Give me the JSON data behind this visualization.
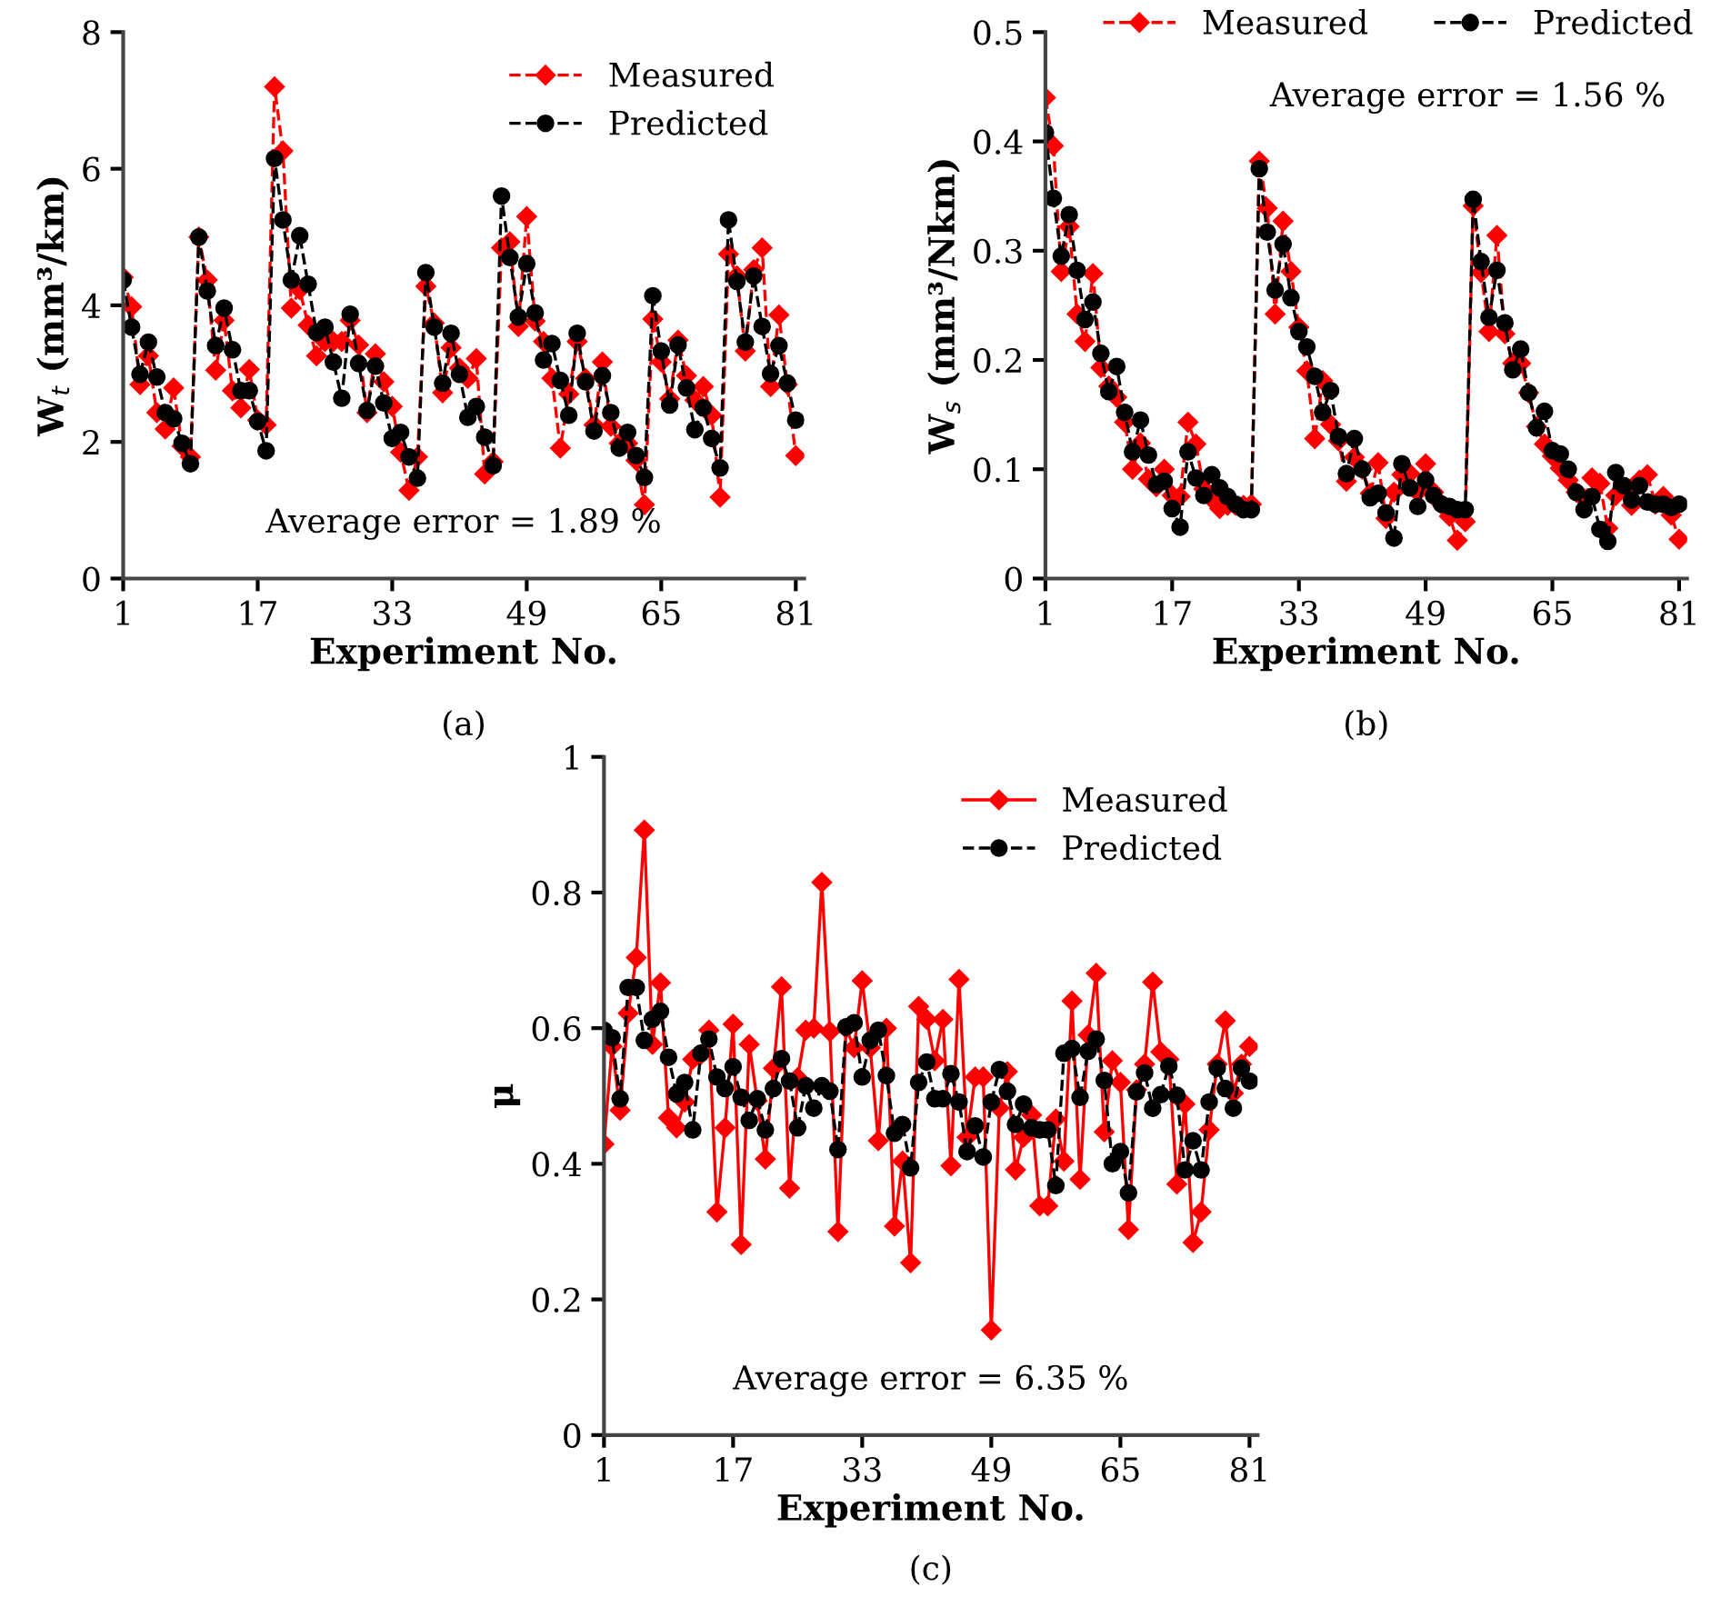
{
  "chart_data": [
    {
      "type": "line",
      "xlabel": "Experiment No.",
      "ylabel": "W$_{t}$ (mm³/km)",
      "x": [
        1,
        2,
        3,
        4,
        5,
        6,
        7,
        8,
        9,
        10,
        11,
        12,
        13,
        14,
        15,
        16,
        17,
        18,
        19,
        20,
        21,
        22,
        23,
        24,
        25,
        26,
        27,
        28,
        29,
        30,
        31,
        32,
        33,
        34,
        35,
        36,
        37,
        38,
        39,
        40,
        41,
        42,
        43,
        44,
        45,
        46,
        47,
        48,
        49,
        50,
        51,
        52,
        53,
        54,
        55,
        56,
        57,
        58,
        59,
        60,
        61,
        62,
        63,
        64,
        65,
        66,
        67,
        68,
        69,
        70,
        71,
        72,
        73,
        74,
        75,
        76,
        77,
        78,
        79,
        80,
        81
      ],
      "xlim": [
        1,
        82
      ],
      "xticks": [
        1,
        17,
        33,
        49,
        65,
        81
      ],
      "ylim": [
        0,
        8
      ],
      "yticks": [
        0,
        2,
        4,
        6,
        8
      ],
      "grid": false,
      "legend": "top right",
      "series": [
        {
          "name": "Measured",
          "color": "#ff0000",
          "marker": "diamond",
          "line_style": "dashed",
          "values": [
            4.41,
            3.98,
            2.84,
            3.26,
            2.43,
            2.19,
            2.79,
            1.94,
            1.78,
            5.0,
            4.37,
            3.05,
            3.78,
            2.75,
            2.5,
            3.06,
            2.32,
            2.25,
            7.2,
            6.26,
            3.96,
            4.23,
            3.71,
            3.26,
            3.47,
            3.47,
            3.47,
            3.78,
            3.42,
            2.43,
            3.29,
            2.88,
            2.52,
            1.85,
            1.29,
            1.78,
            4.28,
            3.74,
            2.72,
            3.38,
            3.08,
            2.93,
            3.22,
            1.53,
            1.71,
            4.84,
            4.93,
            3.69,
            5.3,
            3.77,
            3.47,
            2.93,
            1.91,
            2.7,
            3.47,
            2.93,
            2.25,
            3.17,
            2.23,
            1.98,
            1.98,
            1.73,
            1.08,
            3.8,
            3.17,
            2.63,
            3.49,
            2.97,
            2.61,
            2.81,
            2.39,
            1.19,
            4.75,
            4.43,
            3.33,
            4.52,
            4.84,
            2.81,
            3.86,
            2.84,
            1.8
          ]
        },
        {
          "name": "Predicted",
          "color": "#000000",
          "marker": "circle",
          "line_style": "dashed",
          "values": [
            4.37,
            3.68,
            2.99,
            3.46,
            2.95,
            2.43,
            2.34,
            1.98,
            1.68,
            5.0,
            4.21,
            3.41,
            3.96,
            3.35,
            2.75,
            2.75,
            2.3,
            1.87,
            6.15,
            5.25,
            4.37,
            5.02,
            4.31,
            3.6,
            3.68,
            3.17,
            2.64,
            3.87,
            3.15,
            2.46,
            3.11,
            2.57,
            2.05,
            2.14,
            1.78,
            1.47,
            4.48,
            3.68,
            2.86,
            3.59,
            2.99,
            2.36,
            2.52,
            2.07,
            1.65,
            5.6,
            4.7,
            3.83,
            4.61,
            3.89,
            3.2,
            3.44,
            2.9,
            2.39,
            3.59,
            2.88,
            2.16,
            2.97,
            2.43,
            1.91,
            2.14,
            1.8,
            1.48,
            4.14,
            3.33,
            2.54,
            3.42,
            2.79,
            2.18,
            2.5,
            2.05,
            1.62,
            5.25,
            4.35,
            3.46,
            4.43,
            3.69,
            3.0,
            3.41,
            2.86,
            2.32
          ]
        }
      ],
      "annotations": [
        "Average error = 1.89 %",
        "(a)"
      ]
    },
    {
      "type": "line",
      "xlabel": "Experiment No.",
      "ylabel": "W$_{s}$ (mm³/Nkm)",
      "x": [
        1,
        2,
        3,
        4,
        5,
        6,
        7,
        8,
        9,
        10,
        11,
        12,
        13,
        14,
        15,
        16,
        17,
        18,
        19,
        20,
        21,
        22,
        23,
        24,
        25,
        26,
        27,
        28,
        29,
        30,
        31,
        32,
        33,
        34,
        35,
        36,
        37,
        38,
        39,
        40,
        41,
        42,
        43,
        44,
        45,
        46,
        47,
        48,
        49,
        50,
        51,
        52,
        53,
        54,
        55,
        56,
        57,
        58,
        59,
        60,
        61,
        62,
        63,
        64,
        65,
        66,
        67,
        68,
        69,
        70,
        71,
        72,
        73,
        74,
        75,
        76,
        77,
        78,
        79,
        80,
        81
      ],
      "xlim": [
        1,
        82
      ],
      "xticks": [
        1,
        17,
        33,
        49,
        65,
        81
      ],
      "ylim": [
        0,
        0.5
      ],
      "yticks": [
        0,
        0.1,
        0.2,
        0.3,
        0.4,
        0.5
      ],
      "grid": false,
      "legend": "top",
      "series": [
        {
          "name": "Measured",
          "color": "#ff0000",
          "marker": "diamond",
          "line_style": "dashed",
          "values": [
            0.44,
            0.396,
            0.281,
            0.322,
            0.242,
            0.217,
            0.279,
            0.193,
            0.176,
            0.166,
            0.143,
            0.1,
            0.124,
            0.091,
            0.084,
            0.1,
            0.076,
            0.075,
            0.143,
            0.123,
            0.082,
            0.073,
            0.064,
            0.067,
            0.067,
            0.067,
            0.068,
            0.382,
            0.339,
            0.242,
            0.327,
            0.281,
            0.23,
            0.19,
            0.128,
            0.181,
            0.141,
            0.126,
            0.089,
            0.111,
            0.1,
            0.078,
            0.106,
            0.055,
            0.079,
            0.095,
            0.096,
            0.079,
            0.105,
            0.079,
            0.068,
            0.057,
            0.035,
            0.052,
            0.341,
            0.28,
            0.226,
            0.314,
            0.224,
            0.197,
            0.197,
            0.17,
            0.139,
            0.123,
            0.112,
            0.101,
            0.09,
            0.079,
            0.073,
            0.092,
            0.087,
            0.046,
            0.076,
            0.082,
            0.067,
            0.09,
            0.095,
            0.068,
            0.075,
            0.058,
            0.036
          ]
        },
        {
          "name": "Predicted",
          "color": "#000000",
          "marker": "circle",
          "line_style": "dashed",
          "values": [
            0.408,
            0.348,
            0.295,
            0.333,
            0.282,
            0.237,
            0.253,
            0.206,
            0.171,
            0.194,
            0.152,
            0.116,
            0.145,
            0.113,
            0.086,
            0.089,
            0.064,
            0.047,
            0.116,
            0.092,
            0.076,
            0.095,
            0.083,
            0.075,
            0.068,
            0.063,
            0.063,
            0.375,
            0.317,
            0.264,
            0.306,
            0.257,
            0.226,
            0.212,
            0.185,
            0.152,
            0.172,
            0.13,
            0.096,
            0.128,
            0.1,
            0.074,
            0.078,
            0.06,
            0.037,
            0.105,
            0.083,
            0.066,
            0.09,
            0.076,
            0.068,
            0.066,
            0.063,
            0.063,
            0.347,
            0.29,
            0.239,
            0.282,
            0.234,
            0.191,
            0.21,
            0.17,
            0.138,
            0.153,
            0.117,
            0.114,
            0.1,
            0.079,
            0.063,
            0.075,
            0.045,
            0.034,
            0.097,
            0.085,
            0.072,
            0.085,
            0.07,
            0.068,
            0.068,
            0.065,
            0.068
          ]
        }
      ],
      "annotations": [
        "Average error = 1.56 %",
        "(b)"
      ]
    },
    {
      "type": "line",
      "xlabel": "Experiment No.",
      "ylabel": "μ",
      "x": [
        1,
        2,
        3,
        4,
        5,
        6,
        7,
        8,
        9,
        10,
        11,
        12,
        13,
        14,
        15,
        16,
        17,
        18,
        19,
        20,
        21,
        22,
        23,
        24,
        25,
        26,
        27,
        28,
        29,
        30,
        31,
        32,
        33,
        34,
        35,
        36,
        37,
        38,
        39,
        40,
        41,
        42,
        43,
        44,
        45,
        46,
        47,
        48,
        49,
        50,
        51,
        52,
        53,
        54,
        55,
        56,
        57,
        58,
        59,
        60,
        61,
        62,
        63,
        64,
        65,
        66,
        67,
        68,
        69,
        70,
        71,
        72,
        73,
        74,
        75,
        76,
        77,
        78,
        79,
        80,
        81
      ],
      "xlim": [
        1,
        82
      ],
      "xticks": [
        1,
        17,
        33,
        49,
        65,
        81
      ],
      "ylim": [
        0,
        1
      ],
      "yticks": [
        0,
        0.2,
        0.4,
        0.6,
        0.8,
        1
      ],
      "grid": false,
      "legend": "top right",
      "series": [
        {
          "name": "Measured",
          "color": "#ff0000",
          "marker": "diamond",
          "line_style": "solid",
          "values": [
            0.429,
            0.573,
            0.479,
            0.622,
            0.704,
            0.892,
            0.576,
            0.667,
            0.468,
            0.453,
            0.491,
            0.554,
            0.561,
            0.597,
            0.329,
            0.453,
            0.606,
            0.281,
            0.576,
            0.493,
            0.407,
            0.541,
            0.661,
            0.364,
            0.527,
            0.597,
            0.6,
            0.815,
            0.595,
            0.3,
            0.6,
            0.571,
            0.67,
            0.571,
            0.434,
            0.6,
            0.308,
            0.404,
            0.254,
            0.632,
            0.613,
            0.552,
            0.613,
            0.397,
            0.672,
            0.439,
            0.528,
            0.528,
            0.155,
            0.482,
            0.536,
            0.391,
            0.439,
            0.472,
            0.338,
            0.338,
            0.466,
            0.404,
            0.64,
            0.377,
            0.59,
            0.681,
            0.447,
            0.552,
            0.52,
            0.303,
            0.509,
            0.547,
            0.668,
            0.565,
            0.554,
            0.37,
            0.488,
            0.284,
            0.329,
            0.45,
            0.547,
            0.611,
            0.504,
            0.547,
            0.573
          ]
        },
        {
          "name": "Predicted",
          "color": "#000000",
          "marker": "circle",
          "line_style": "dashed",
          "values": [
            0.597,
            0.586,
            0.496,
            0.66,
            0.66,
            0.582,
            0.613,
            0.625,
            0.557,
            0.503,
            0.52,
            0.45,
            0.563,
            0.584,
            0.528,
            0.511,
            0.543,
            0.498,
            0.464,
            0.496,
            0.45,
            0.511,
            0.555,
            0.522,
            0.453,
            0.515,
            0.482,
            0.515,
            0.507,
            0.421,
            0.602,
            0.608,
            0.528,
            0.582,
            0.597,
            0.53,
            0.445,
            0.458,
            0.394,
            0.52,
            0.55,
            0.496,
            0.496,
            0.533,
            0.491,
            0.418,
            0.456,
            0.41,
            0.491,
            0.539,
            0.507,
            0.458,
            0.488,
            0.453,
            0.45,
            0.45,
            0.368,
            0.563,
            0.57,
            0.498,
            0.566,
            0.584,
            0.523,
            0.4,
            0.418,
            0.357,
            0.506,
            0.534,
            0.482,
            0.502,
            0.544,
            0.501,
            0.391,
            0.434,
            0.391,
            0.491,
            0.541,
            0.511,
            0.482,
            0.541,
            0.522
          ]
        }
      ],
      "annotations": [
        "Average error = 6.35 %",
        "(c)"
      ]
    }
  ]
}
